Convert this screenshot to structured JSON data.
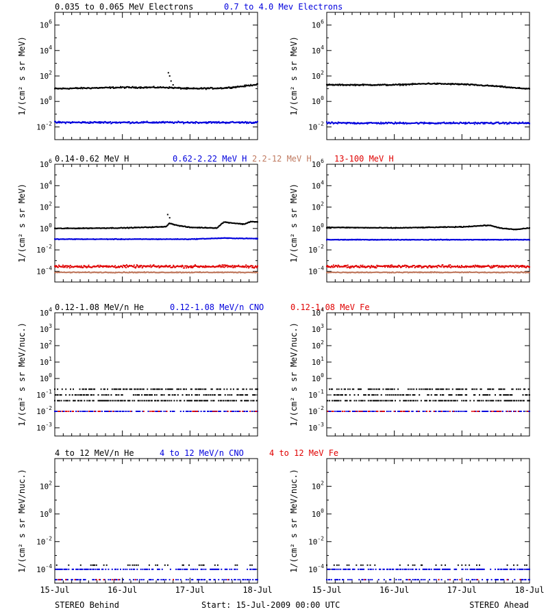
{
  "figure": {
    "left_caption": "STEREO Behind",
    "center_caption": "Start: 15-Jul-2009 00:00 UTC",
    "right_caption": "STEREO Ahead",
    "x_ticks": [
      "15-Jul",
      "16-Jul",
      "17-Jul",
      "18-Jul"
    ],
    "colors": {
      "black": "#000000",
      "blue": "#0000dd",
      "tan": "#c07a60",
      "red": "#e00000"
    }
  },
  "chart_data": [
    {
      "type": "scatter",
      "row": 1,
      "spacecraft": "STEREO Behind",
      "ylabel": "1/(cm² s sr MeV)",
      "y_scale": "log",
      "ylim_exp": [
        -3,
        7
      ],
      "y_tick_exps": [
        -2,
        0,
        2,
        4,
        6
      ],
      "xlim_days": [
        0,
        3
      ],
      "legend": [
        {
          "name": "0.035 to 0.065 MeV Electrons",
          "color": "#000000"
        },
        {
          "name": "0.7 to 4.0 Mev Electrons",
          "color": "#0000dd"
        }
      ],
      "series": [
        {
          "name": "0.035 to 0.065 MeV Electrons",
          "color": "#000000",
          "style": "dots",
          "profile": [
            [
              0,
              1.0
            ],
            [
              0.5,
              1.05
            ],
            [
              1.0,
              1.1
            ],
            [
              1.55,
              1.1
            ],
            [
              1.65,
              1.1
            ],
            [
              2.0,
              1.0
            ],
            [
              2.5,
              1.05
            ],
            [
              2.8,
              1.2
            ],
            [
              3.0,
              1.35
            ]
          ],
          "spikes": [
            [
              1.68,
              2.25
            ],
            [
              1.7,
              2.0
            ],
            [
              1.72,
              1.6
            ],
            [
              1.75,
              1.3
            ]
          ],
          "scatter": 0.08
        },
        {
          "name": "0.7 to 4.0 Mev Electrons",
          "color": "#0000dd",
          "style": "dots",
          "profile": [
            [
              0,
              -1.65
            ],
            [
              3.0,
              -1.65
            ]
          ],
          "scatter": 0.1
        }
      ]
    },
    {
      "type": "scatter",
      "row": 1,
      "spacecraft": "STEREO Ahead",
      "ylabel": "1/(cm² s sr MeV)",
      "y_scale": "log",
      "ylim_exp": [
        -3,
        7
      ],
      "y_tick_exps": [
        -2,
        0,
        2,
        4,
        6
      ],
      "xlim_days": [
        0,
        3
      ],
      "legend": [],
      "series": [
        {
          "name": "0.035 to 0.065 MeV Electrons",
          "color": "#000000",
          "style": "dots",
          "profile": [
            [
              0,
              1.3
            ],
            [
              1.0,
              1.3
            ],
            [
              1.5,
              1.4
            ],
            [
              2.0,
              1.35
            ],
            [
              2.5,
              1.2
            ],
            [
              2.8,
              1.05
            ],
            [
              3.0,
              1.0
            ]
          ],
          "scatter": 0.07
        },
        {
          "name": "0.7 to 4.0 Mev Electrons",
          "color": "#0000dd",
          "style": "dots",
          "profile": [
            [
              0,
              -1.7
            ],
            [
              3.0,
              -1.7
            ]
          ],
          "scatter": 0.1
        }
      ]
    },
    {
      "type": "scatter",
      "row": 2,
      "spacecraft": "STEREO Behind",
      "ylabel": "1/(cm² s sr MeV)",
      "y_scale": "log",
      "ylim_exp": [
        -5,
        6
      ],
      "y_tick_exps": [
        -4,
        -2,
        0,
        2,
        4,
        6
      ],
      "xlim_days": [
        0,
        3
      ],
      "legend": [
        {
          "name": "0.14-0.62 MeV H",
          "color": "#000000"
        },
        {
          "name": "0.62-2.22 MeV H",
          "color": "#0000dd"
        },
        {
          "name": "2.2-12 MeV H",
          "color": "#c07a60"
        },
        {
          "name": "13-100 MeV H",
          "color": "#e00000"
        }
      ],
      "series": [
        {
          "name": "0.14-0.62 MeV H",
          "color": "#000000",
          "style": "dots",
          "profile": [
            [
              0,
              0.0
            ],
            [
              1.0,
              0.05
            ],
            [
              1.6,
              0.15
            ],
            [
              1.65,
              0.2
            ],
            [
              1.7,
              0.5
            ],
            [
              1.8,
              0.3
            ],
            [
              2.0,
              0.1
            ],
            [
              2.4,
              0.05
            ],
            [
              2.5,
              0.6
            ],
            [
              2.8,
              0.4
            ],
            [
              2.9,
              0.65
            ],
            [
              3.0,
              0.6
            ]
          ],
          "spikes": [
            [
              1.67,
              1.3
            ],
            [
              1.7,
              1.0
            ]
          ],
          "scatter": 0.05
        },
        {
          "name": "0.62-2.22 MeV H",
          "color": "#0000dd",
          "style": "dots",
          "profile": [
            [
              0,
              -1.0
            ],
            [
              2.0,
              -1.0
            ],
            [
              2.5,
              -0.9
            ],
            [
              3.0,
              -0.95
            ]
          ],
          "scatter": 0.04
        },
        {
          "name": "13-100 MeV H",
          "color": "#e00000",
          "style": "dots",
          "profile": [
            [
              0,
              -3.55
            ],
            [
              3.0,
              -3.55
            ]
          ],
          "scatter": 0.18
        },
        {
          "name": "2.2-12 MeV H",
          "color": "#c07a60",
          "style": "dots",
          "profile": [
            [
              0,
              -4.1
            ],
            [
              3.0,
              -4.1
            ]
          ],
          "scatter": 0.06
        }
      ]
    },
    {
      "type": "scatter",
      "row": 2,
      "spacecraft": "STEREO Ahead",
      "ylabel": "1/(cm² s sr MeV)",
      "y_scale": "log",
      "ylim_exp": [
        -5,
        6
      ],
      "y_tick_exps": [
        -4,
        -2,
        0,
        2,
        4,
        6
      ],
      "xlim_days": [
        0,
        3
      ],
      "legend": [],
      "series": [
        {
          "name": "0.14-0.62 MeV H",
          "color": "#000000",
          "style": "dots",
          "profile": [
            [
              0,
              0.1
            ],
            [
              1.0,
              0.05
            ],
            [
              2.0,
              0.15
            ],
            [
              2.4,
              0.3
            ],
            [
              2.6,
              0.0
            ],
            [
              2.8,
              -0.1
            ],
            [
              3.0,
              0.05
            ]
          ],
          "scatter": 0.05
        },
        {
          "name": "0.62-2.22 MeV H",
          "color": "#0000dd",
          "style": "dots",
          "profile": [
            [
              0,
              -1.05
            ],
            [
              3.0,
              -1.05
            ]
          ],
          "scatter": 0.04
        },
        {
          "name": "13-100 MeV H",
          "color": "#e00000",
          "style": "dots",
          "profile": [
            [
              0,
              -3.55
            ],
            [
              3.0,
              -3.55
            ]
          ],
          "scatter": 0.18
        },
        {
          "name": "2.2-12 MeV H",
          "color": "#c07a60",
          "style": "dots",
          "profile": [
            [
              0,
              -4.1
            ],
            [
              3.0,
              -4.1
            ]
          ],
          "scatter": 0.06
        }
      ]
    },
    {
      "type": "scatter",
      "row": 3,
      "spacecraft": "STEREO Behind",
      "ylabel": "1/(cm² s sr MeV/nuc.)",
      "y_scale": "log",
      "ylim_exp": [
        -3.5,
        4
      ],
      "y_tick_exps": [
        -3,
        -2,
        -1,
        0,
        1,
        2,
        3,
        4
      ],
      "xlim_days": [
        0,
        3
      ],
      "legend": [
        {
          "name": "0.12-1.08 MeV/n He",
          "color": "#000000"
        },
        {
          "name": "0.12-1.08 MeV/n CNO",
          "color": "#0000dd"
        },
        {
          "name": "0.12-1.08 MeV Fe",
          "color": "#e00000"
        }
      ],
      "series": [
        {
          "name": "0.12-1.08 MeV/n He",
          "color": "#000000",
          "style": "levels",
          "levels": [
            -1.35,
            -1.0,
            -0.65
          ],
          "density": 0.55
        },
        {
          "name": "0.12-1.08 MeV/n CNO",
          "color": "#0000dd",
          "style": "levels",
          "levels": [
            -2.0
          ],
          "density": 0.55
        },
        {
          "name": "0.12-1.08 MeV Fe",
          "color": "#e00000",
          "style": "levels",
          "levels": [
            -2.0
          ],
          "density": 0.2
        }
      ]
    },
    {
      "type": "scatter",
      "row": 3,
      "spacecraft": "STEREO Ahead",
      "ylabel": "1/(cm² s sr MeV/nuc.)",
      "y_scale": "log",
      "ylim_exp": [
        -3.5,
        4
      ],
      "y_tick_exps": [
        -3,
        -2,
        -1,
        0,
        1,
        2,
        3,
        4
      ],
      "xlim_days": [
        0,
        3
      ],
      "legend": [],
      "series": [
        {
          "name": "0.12-1.08 MeV/n He",
          "color": "#000000",
          "style": "levels",
          "levels": [
            -1.35,
            -1.0,
            -0.65
          ],
          "density": 0.55
        },
        {
          "name": "0.12-1.08 MeV/n CNO",
          "color": "#0000dd",
          "style": "levels",
          "levels": [
            -2.0
          ],
          "density": 0.55
        },
        {
          "name": "0.12-1.08 MeV Fe",
          "color": "#e00000",
          "style": "levels",
          "levels": [
            -2.0
          ],
          "density": 0.2
        }
      ]
    },
    {
      "type": "scatter",
      "row": 4,
      "spacecraft": "STEREO Behind",
      "ylabel": "1/(cm² s sr MeV/nuc.)",
      "y_scale": "log",
      "ylim_exp": [
        -5,
        4
      ],
      "y_tick_exps": [
        -4,
        -2,
        0,
        2
      ],
      "xlim_days": [
        0,
        3
      ],
      "legend": [
        {
          "name": "4 to 12 MeV/n He",
          "color": "#000000"
        },
        {
          "name": "4 to 12 MeV/n CNO",
          "color": "#0000dd"
        },
        {
          "name": "4 to 12 MeV Fe",
          "color": "#e00000"
        }
      ],
      "series": [
        {
          "name": "4 to 12 MeV/n He",
          "color": "#000000",
          "style": "levels",
          "levels": [
            -3.7
          ],
          "density": 0.15
        },
        {
          "name": "4 to 12 MeV/n CNO",
          "color": "#0000dd",
          "style": "levels",
          "levels": [
            -4.0,
            -4.75
          ],
          "density": 0.5
        },
        {
          "name": "4 to 12 MeV Fe",
          "color": "#e00000",
          "style": "levels",
          "levels": [
            -4.75
          ],
          "density": 0.05
        }
      ]
    },
    {
      "type": "scatter",
      "row": 4,
      "spacecraft": "STEREO Ahead",
      "ylabel": "1/(cm² s sr MeV/nuc.)",
      "y_scale": "log",
      "ylim_exp": [
        -5,
        4
      ],
      "y_tick_exps": [
        -4,
        -2,
        0,
        2
      ],
      "xlim_days": [
        0,
        3
      ],
      "legend": [],
      "series": [
        {
          "name": "4 to 12 MeV/n He",
          "color": "#000000",
          "style": "levels",
          "levels": [
            -3.7
          ],
          "density": 0.15
        },
        {
          "name": "4 to 12 MeV/n CNO",
          "color": "#0000dd",
          "style": "levels",
          "levels": [
            -4.0,
            -4.75
          ],
          "density": 0.5
        },
        {
          "name": "4 to 12 MeV Fe",
          "color": "#e00000",
          "style": "levels",
          "levels": [
            -4.75
          ],
          "density": 0.05
        }
      ]
    }
  ]
}
